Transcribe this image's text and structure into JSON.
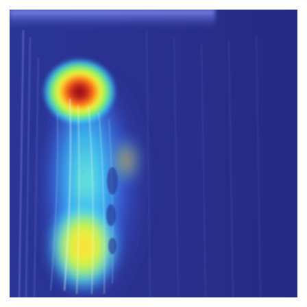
{
  "image": {
    "kind": "attention-heatmap-overlay",
    "colormap": "jet",
    "colors": {
      "background_low": "#262b86",
      "cool_blue": "#3f6cff",
      "cyan": "#38d6ff",
      "green": "#7cf06a",
      "yellow": "#f2f23a",
      "orange": "#ff7a1a",
      "red_peak": "#8a0f12",
      "frame": "#ffffff"
    },
    "hotspots": [
      {
        "name": "upper-peak",
        "intensity": 1.0
      },
      {
        "name": "lower-peak",
        "intensity": 0.8
      }
    ]
  }
}
